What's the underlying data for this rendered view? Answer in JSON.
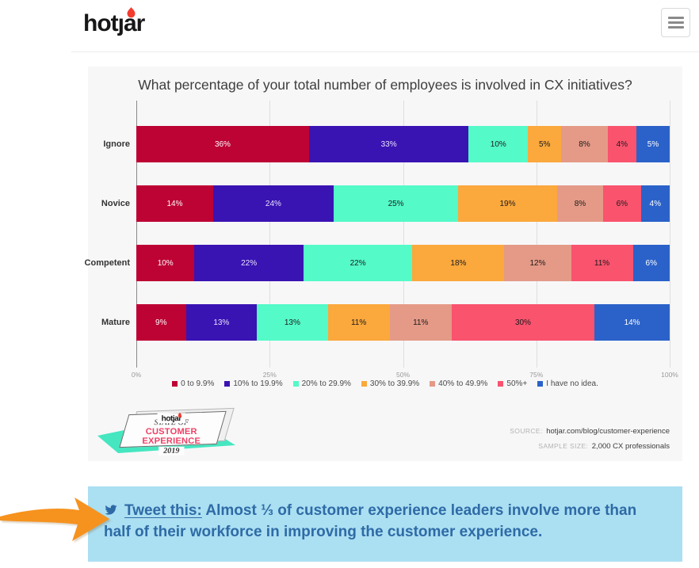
{
  "header": {
    "logo_text": "hotȷar",
    "menu": "menu"
  },
  "chart": {
    "title": "What percentage of your total number of employees is involved in CX initiatives?",
    "chart_data": {
      "type": "bar",
      "stacked": true,
      "orientation": "horizontal",
      "title": "What percentage of your total number of employees is involved in CX initiatives?",
      "categories": [
        "Ignore",
        "Novice",
        "Competent",
        "Mature"
      ],
      "series": [
        {
          "name": "0 to 9.9%",
          "color": "#bd0234",
          "label_color": "#ffffff",
          "values": [
            36,
            14,
            10,
            9
          ]
        },
        {
          "name": "10% to 19.9%",
          "color": "#3a13b3",
          "label_color": "#e8e2ff",
          "values": [
            33,
            24,
            22,
            13
          ]
        },
        {
          "name": "20% to 29.9%",
          "color": "#54fac8",
          "label_color": "#1b1b1b",
          "values": [
            10,
            25,
            22,
            13
          ]
        },
        {
          "name": "30% to 39.9%",
          "color": "#fba83d",
          "label_color": "#1b1b1b",
          "values": [
            5,
            19,
            18,
            11
          ]
        },
        {
          "name": "40% to 49.9%",
          "color": "#e49a87",
          "label_color": "#1b1b1b",
          "values": [
            8,
            8,
            12,
            11
          ]
        },
        {
          "name": "50%+",
          "color": "#f9536e",
          "label_color": "#1b1b1b",
          "values": [
            4,
            6,
            11,
            30
          ]
        },
        {
          "name": "I have no idea.",
          "color": "#2b62c9",
          "label_color": "#ffffff",
          "values": [
            5,
            4,
            6,
            14
          ]
        }
      ],
      "x_ticks": [
        "0%",
        "25%",
        "50%",
        "75%",
        "100%"
      ],
      "xlim": [
        0,
        100
      ],
      "legend_position": "bottom",
      "grid": true
    },
    "badge": {
      "logo": "hotjar",
      "line1": "STATE OF",
      "line2": "CUSTOMER EXPERIENCE",
      "line3": "2019"
    },
    "source_label": "SOURCE:",
    "source_value": "hotjar.com/blog/customer-experience",
    "sample_label": "SAMPLE SIZE:",
    "sample_value": "2,000 CX professionals"
  },
  "tweet": {
    "link_label": "Tweet this:",
    "text": " Almost ⅓ of customer experience leaders involve more than half of their workforce in improving the customer experience."
  },
  "colors": {
    "tweet_bg": "#abdff2",
    "tweet_text": "#2e6ba6",
    "arrow": "#f6921e",
    "badge_accent": "#ef4166",
    "logo_flame": "#f43b2d"
  }
}
